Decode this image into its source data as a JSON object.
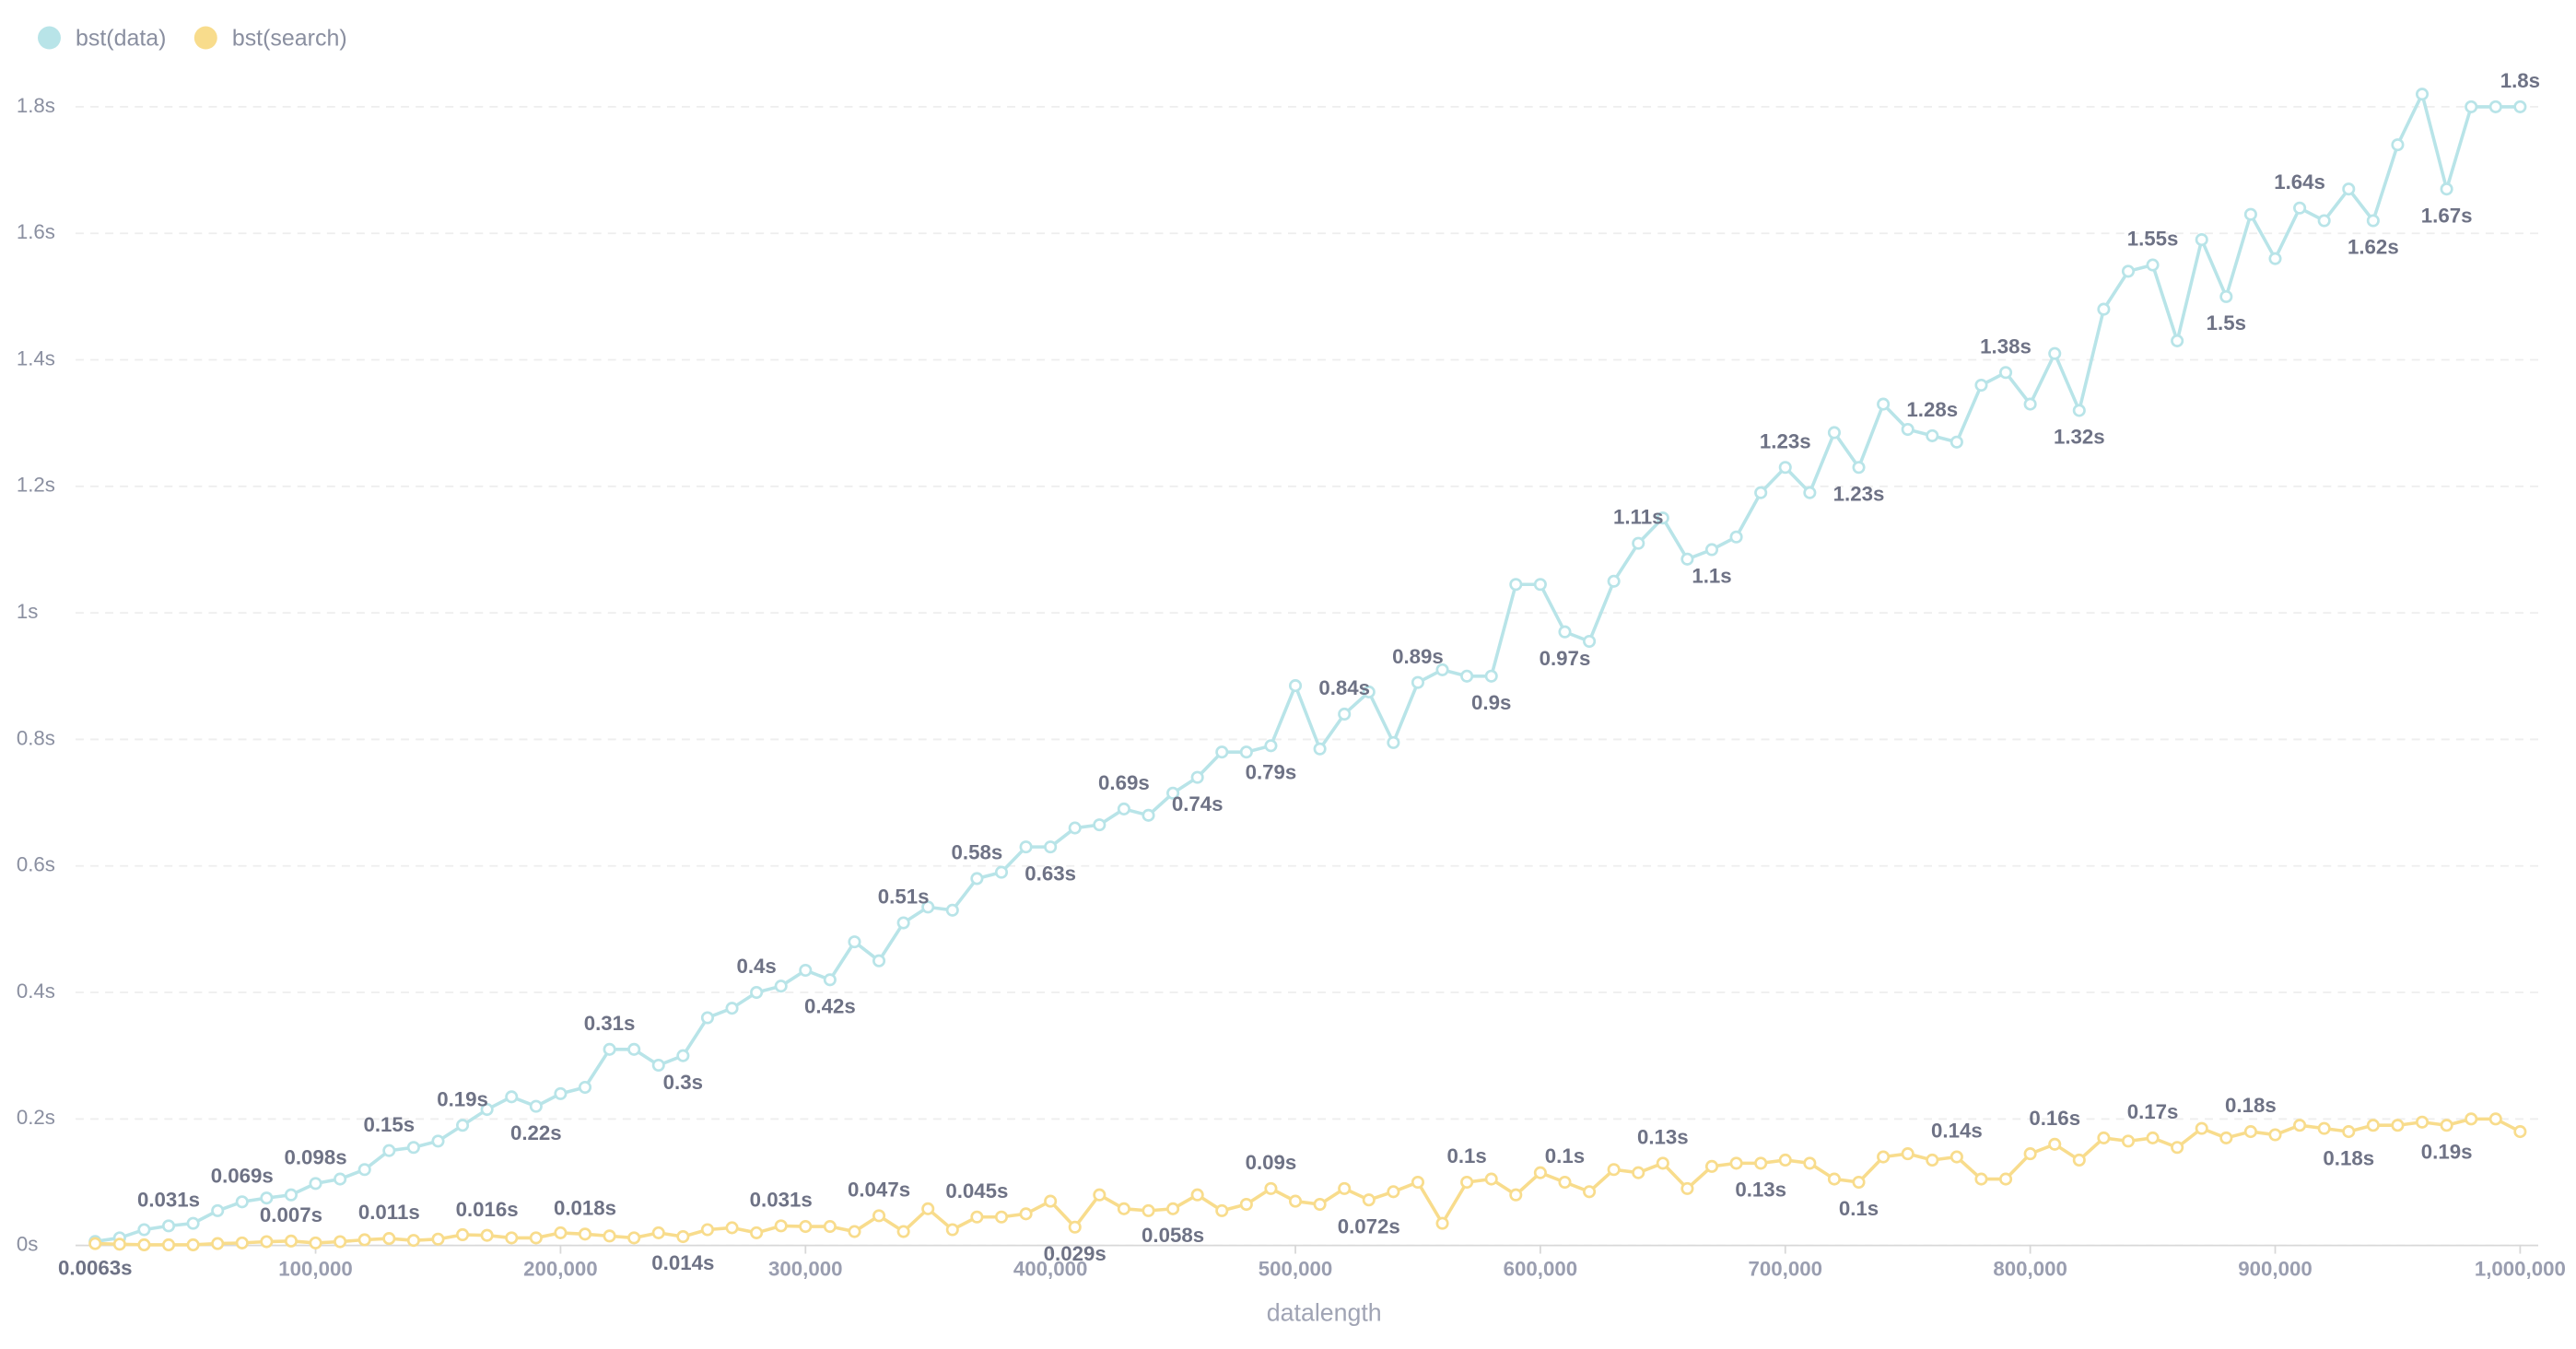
{
  "chart_data": {
    "type": "line",
    "x_label": "datalength",
    "x": [
      10000,
      20000,
      30000,
      40000,
      50000,
      60000,
      70000,
      80000,
      90000,
      100000,
      110000,
      120000,
      130000,
      140000,
      150000,
      160000,
      170000,
      180000,
      190000,
      200000,
      210000,
      220000,
      230000,
      240000,
      250000,
      260000,
      270000,
      280000,
      290000,
      300000,
      310000,
      320000,
      330000,
      340000,
      350000,
      360000,
      370000,
      380000,
      390000,
      400000,
      410000,
      420000,
      430000,
      440000,
      450000,
      460000,
      470000,
      480000,
      490000,
      500000,
      510000,
      520000,
      530000,
      540000,
      550000,
      560000,
      570000,
      580000,
      590000,
      600000,
      610000,
      620000,
      630000,
      640000,
      650000,
      660000,
      670000,
      680000,
      690000,
      700000,
      710000,
      720000,
      730000,
      740000,
      750000,
      760000,
      770000,
      780000,
      790000,
      800000,
      810000,
      820000,
      830000,
      840000,
      850000,
      860000,
      870000,
      880000,
      890000,
      900000,
      910000,
      920000,
      930000,
      940000,
      950000,
      960000,
      970000,
      980000,
      990000,
      1000000
    ],
    "series": [
      {
        "name": "bst(data)",
        "color": "#b8e4e8",
        "values": [
          0.0063,
          0.012,
          0.025,
          0.031,
          0.035,
          0.055,
          0.069,
          0.075,
          0.08,
          0.098,
          0.105,
          0.12,
          0.15,
          0.155,
          0.165,
          0.19,
          0.215,
          0.235,
          0.22,
          0.24,
          0.25,
          0.31,
          0.31,
          0.285,
          0.3,
          0.36,
          0.375,
          0.4,
          0.41,
          0.435,
          0.42,
          0.48,
          0.45,
          0.51,
          0.535,
          0.53,
          0.58,
          0.59,
          0.63,
          0.63,
          0.66,
          0.665,
          0.69,
          0.68,
          0.715,
          0.74,
          0.78,
          0.78,
          0.79,
          0.885,
          0.785,
          0.84,
          0.875,
          0.795,
          0.89,
          0.91,
          0.9,
          0.9,
          1.045,
          1.045,
          0.97,
          0.955,
          1.05,
          1.11,
          1.15,
          1.085,
          1.1,
          1.12,
          1.19,
          1.23,
          1.19,
          1.285,
          1.23,
          1.33,
          1.29,
          1.28,
          1.27,
          1.36,
          1.38,
          1.33,
          1.41,
          1.32,
          1.48,
          1.54,
          1.55,
          1.43,
          1.59,
          1.5,
          1.63,
          1.56,
          1.64,
          1.62,
          1.67,
          1.62,
          1.74,
          1.82,
          1.67,
          1.8,
          1.8,
          1.8
        ],
        "value_labels": [
          "0.0063s",
          null,
          null,
          "0.031s",
          null,
          null,
          "0.069s",
          null,
          null,
          "0.098s",
          null,
          null,
          "0.15s",
          null,
          null,
          "0.19s",
          null,
          null,
          "0.22s",
          null,
          null,
          "0.31s",
          null,
          null,
          "0.3s",
          null,
          null,
          "0.4s",
          null,
          null,
          "0.42s",
          null,
          null,
          "0.51s",
          null,
          null,
          "0.58s",
          null,
          null,
          "0.63s",
          null,
          null,
          "0.69s",
          null,
          null,
          "0.74s",
          null,
          null,
          "0.79s",
          null,
          null,
          "0.84s",
          null,
          null,
          "0.89s",
          null,
          null,
          "0.9s",
          null,
          null,
          "0.97s",
          null,
          null,
          "1.11s",
          null,
          null,
          "1.1s",
          null,
          null,
          "1.23s",
          null,
          null,
          "1.23s",
          null,
          null,
          "1.28s",
          null,
          null,
          "1.38s",
          null,
          null,
          "1.32s",
          null,
          null,
          "1.55s",
          null,
          null,
          "1.5s",
          null,
          null,
          "1.64s",
          null,
          null,
          "1.62s",
          null,
          null,
          "1.67s",
          null,
          null,
          "1.8s"
        ]
      },
      {
        "name": "bst(search)",
        "color": "#f8dc8c",
        "values": [
          0.003,
          0.002,
          0.001,
          0.001,
          0.001,
          0.003,
          0.004,
          0.006,
          0.007,
          0.004,
          0.006,
          0.009,
          0.011,
          0.008,
          0.01,
          0.017,
          0.016,
          0.012,
          0.012,
          0.02,
          0.018,
          0.015,
          0.012,
          0.02,
          0.014,
          0.025,
          0.028,
          0.02,
          0.031,
          0.03,
          0.03,
          0.022,
          0.047,
          0.022,
          0.058,
          0.025,
          0.045,
          0.045,
          0.05,
          0.07,
          0.029,
          0.08,
          0.058,
          0.055,
          0.058,
          0.08,
          0.055,
          0.065,
          0.09,
          0.07,
          0.065,
          0.09,
          0.072,
          0.085,
          0.1,
          0.035,
          0.1,
          0.105,
          0.08,
          0.115,
          0.1,
          0.085,
          0.12,
          0.115,
          0.13,
          0.09,
          0.125,
          0.13,
          0.13,
          0.135,
          0.13,
          0.105,
          0.1,
          0.14,
          0.145,
          0.135,
          0.14,
          0.105,
          0.105,
          0.145,
          0.16,
          0.135,
          0.17,
          0.165,
          0.17,
          0.155,
          0.185,
          0.17,
          0.18,
          0.175,
          0.19,
          0.185,
          0.18,
          0.19,
          0.19,
          0.195,
          0.19,
          0.2,
          0.2,
          0.18
        ],
        "value_labels": [
          null,
          null,
          null,
          null,
          null,
          null,
          null,
          null,
          "0.007s",
          null,
          null,
          null,
          "0.011s",
          null,
          null,
          null,
          "0.016s",
          null,
          null,
          null,
          "0.018s",
          null,
          null,
          null,
          "0.014s",
          null,
          null,
          null,
          "0.031s",
          null,
          null,
          null,
          "0.047s",
          null,
          null,
          null,
          "0.045s",
          null,
          null,
          null,
          "0.029s",
          null,
          null,
          null,
          "0.058s",
          null,
          null,
          null,
          "0.09s",
          null,
          null,
          null,
          "0.072s",
          null,
          null,
          null,
          "0.1s",
          null,
          null,
          null,
          "0.1s",
          null,
          null,
          null,
          "0.13s",
          null,
          null,
          null,
          "0.13s",
          null,
          null,
          null,
          "0.1s",
          null,
          null,
          null,
          "0.14s",
          null,
          null,
          null,
          "0.16s",
          null,
          null,
          null,
          "0.17s",
          null,
          null,
          null,
          "0.18s",
          null,
          null,
          null,
          "0.18s",
          null,
          null,
          null,
          "0.19s",
          null,
          null,
          null
        ]
      }
    ],
    "xlim": [
      0,
      1000000
    ],
    "ylim": [
      0,
      1.9
    ],
    "xticks": [
      {
        "value": 100000,
        "label": "100,000"
      },
      {
        "value": 200000,
        "label": "200,000"
      },
      {
        "value": 300000,
        "label": "300,000"
      },
      {
        "value": 400000,
        "label": "400,000"
      },
      {
        "value": 500000,
        "label": "500,000"
      },
      {
        "value": 600000,
        "label": "600,000"
      },
      {
        "value": 700000,
        "label": "700,000"
      },
      {
        "value": 800000,
        "label": "800,000"
      },
      {
        "value": 900000,
        "label": "900,000"
      },
      {
        "value": 1000000,
        "label": "1,000,000"
      }
    ],
    "yticks": [
      {
        "value": 0,
        "label": "0s"
      },
      {
        "value": 0.2,
        "label": "0.2s"
      },
      {
        "value": 0.4,
        "label": "0.4s"
      },
      {
        "value": 0.6,
        "label": "0.6s"
      },
      {
        "value": 0.8,
        "label": "0.8s"
      },
      {
        "value": 1,
        "label": "1s"
      },
      {
        "value": 1.2,
        "label": "1.2s"
      },
      {
        "value": 1.4,
        "label": "1.4s"
      },
      {
        "value": 1.6,
        "label": "1.6s"
      },
      {
        "value": 1.8,
        "label": "1.8s"
      }
    ],
    "grid": true,
    "legend": "top-left"
  }
}
